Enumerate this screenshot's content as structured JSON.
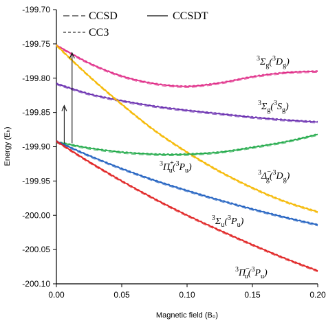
{
  "chart_data": {
    "type": "line",
    "xlabel": "Magnetic field (B₀)",
    "ylabel": "Energy (Eₕ)",
    "xlim": [
      0.0,
      0.2
    ],
    "ylim": [
      -200.1,
      -199.7
    ],
    "xticks": [
      "0.00",
      "0.05",
      "0.10",
      "0.15",
      "0.20"
    ],
    "yticks": [
      "-199.70",
      "-199.75",
      "-199.80",
      "-199.85",
      "-199.90",
      "-199.95",
      "-200.00",
      "-200.05",
      "-200.10"
    ],
    "xtick_values": [
      0.0,
      0.05,
      0.1,
      0.15,
      0.2
    ],
    "ytick_values": [
      -199.7,
      -199.75,
      -199.8,
      -199.85,
      -199.9,
      -199.95,
      -200.0,
      -200.05,
      -200.1
    ],
    "legend": [
      {
        "label": "CCSD",
        "style": "dashed-long"
      },
      {
        "label": "CCSDT",
        "style": "solid"
      },
      {
        "label": "CC3",
        "style": "dashed-short"
      }
    ],
    "series": [
      {
        "name": "3Σg(3Dg)",
        "color": "#e0308a",
        "x": [
          0.0,
          0.025,
          0.05,
          0.075,
          0.1,
          0.125,
          0.15,
          0.175,
          0.2
        ],
        "y": [
          -199.752,
          -199.778,
          -199.797,
          -199.808,
          -199.812,
          -199.807,
          -199.798,
          -199.792,
          -199.79
        ]
      },
      {
        "name": "3Σg(3Sg)",
        "color": "#6a2fb0",
        "x": [
          0.0,
          0.025,
          0.05,
          0.075,
          0.1,
          0.125,
          0.15,
          0.175,
          0.2
        ],
        "y": [
          -199.808,
          -199.823,
          -199.833,
          -199.841,
          -199.847,
          -199.852,
          -199.857,
          -199.861,
          -199.864
        ]
      },
      {
        "name": "3Δg−(3Dg)",
        "color": "#f5b800",
        "x": [
          0.0,
          0.025,
          0.05,
          0.075,
          0.1,
          0.125,
          0.15,
          0.175,
          0.2
        ],
        "y": [
          -199.752,
          -199.797,
          -199.838,
          -199.876,
          -199.908,
          -199.936,
          -199.96,
          -199.98,
          -199.995
        ]
      },
      {
        "name": "3Πu+(3Pu)",
        "color": "#22aa4a",
        "x": [
          0.0,
          0.025,
          0.05,
          0.075,
          0.1,
          0.125,
          0.15,
          0.175,
          0.2
        ],
        "y": [
          -199.893,
          -199.902,
          -199.908,
          -199.911,
          -199.911,
          -199.908,
          -199.901,
          -199.893,
          -199.882
        ]
      },
      {
        "name": "3Σu(3Pu)",
        "color": "#2060c0",
        "x": [
          0.0,
          0.025,
          0.05,
          0.075,
          0.1,
          0.125,
          0.15,
          0.175,
          0.2
        ],
        "y": [
          -199.892,
          -199.913,
          -199.932,
          -199.949,
          -199.964,
          -199.978,
          -199.991,
          -200.003,
          -200.014
        ]
      },
      {
        "name": "3Πu−(3Pu)",
        "color": "#e02020",
        "x": [
          0.0,
          0.025,
          0.05,
          0.075,
          0.1,
          0.125,
          0.15,
          0.175,
          0.2
        ],
        "y": [
          -199.892,
          -199.922,
          -199.95,
          -199.976,
          -200.0,
          -200.022,
          -200.043,
          -200.063,
          -200.081
        ]
      }
    ],
    "arrows": [
      {
        "x": 0.006,
        "from_y": -199.895,
        "to_y": -199.84
      },
      {
        "x": 0.012,
        "from_y": -199.895,
        "to_y": -199.763
      }
    ]
  }
}
